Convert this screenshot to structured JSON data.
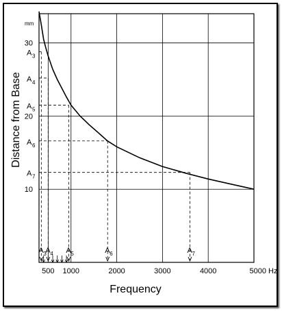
{
  "chart_data": {
    "type": "line",
    "title": "",
    "xlabel": "Frequency",
    "ylabel": "Distance from Base",
    "y_unit": "mm",
    "x_unit": "Hz",
    "xlim": [
      300,
      5000
    ],
    "ylim": [
      0,
      34
    ],
    "x_ticks": [
      {
        "value": 500,
        "label": "500"
      },
      {
        "value": 1000,
        "label": "1000"
      },
      {
        "value": 2000,
        "label": "2000"
      },
      {
        "value": 3000,
        "label": "3000"
      },
      {
        "value": 4000,
        "label": "4000"
      },
      {
        "value": 5000,
        "label": "5000 Hz"
      }
    ],
    "y_ticks": [
      {
        "value": 10,
        "label": "10"
      },
      {
        "value": 20,
        "label": "20"
      },
      {
        "value": 30,
        "label": "30"
      }
    ],
    "grid": true,
    "series": [
      {
        "points": [
          [
            300,
            34.3
          ],
          [
            350,
            32.5
          ],
          [
            400,
            30.5
          ],
          [
            450,
            29.3
          ],
          [
            500,
            28.2
          ],
          [
            600,
            26.4
          ],
          [
            700,
            25.0
          ],
          [
            800,
            23.8
          ],
          [
            900,
            22.6
          ],
          [
            1000,
            21.5
          ],
          [
            1200,
            20.0
          ],
          [
            1400,
            18.8
          ],
          [
            1600,
            17.7
          ],
          [
            1800,
            16.6
          ],
          [
            2000,
            15.8
          ],
          [
            2500,
            14.3
          ],
          [
            3000,
            13.1
          ],
          [
            3500,
            12.2
          ],
          [
            4000,
            11.4
          ],
          [
            4500,
            10.7
          ],
          [
            5000,
            10.0
          ]
        ]
      }
    ],
    "annotations": [
      {
        "label": "A",
        "sub": "3",
        "x": 350,
        "y": 28.8
      },
      {
        "label": "A",
        "sub": "4",
        "x": 500,
        "y": 25.2
      },
      {
        "label": "A",
        "sub": "5",
        "x": 950,
        "y": 21.5
      },
      {
        "label": "A",
        "sub": "6",
        "x": 1800,
        "y": 16.6
      },
      {
        "label": "A",
        "sub": "7",
        "x": 3600,
        "y": 12.3
      }
    ],
    "minor_x_arrows": [
      400,
      600,
      700,
      800,
      900
    ]
  }
}
